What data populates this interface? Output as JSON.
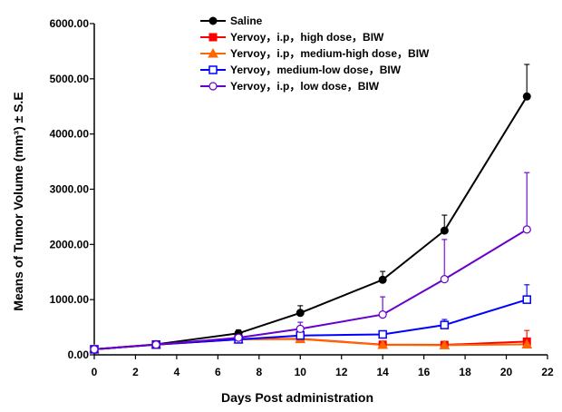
{
  "chart_data": {
    "type": "line",
    "title": "",
    "xlabel": "Days Post administration",
    "ylabel": "Means of Tumor Volume (mm³) ± S.E",
    "xlim": [
      0,
      22
    ],
    "ylim": [
      0,
      6000
    ],
    "xticks": [
      0,
      2,
      4,
      6,
      8,
      10,
      12,
      14,
      16,
      18,
      20,
      22
    ],
    "yticks": [
      0,
      1000,
      2000,
      3000,
      4000,
      5000,
      6000
    ],
    "ytick_labels": [
      "0.00",
      "1000.00",
      "2000.00",
      "3000.00",
      "4000.00",
      "5000.00",
      "6000.00"
    ],
    "grid": false,
    "legend_position": "top-left",
    "x": [
      0,
      3,
      7,
      10,
      14,
      17,
      21
    ],
    "series": [
      {
        "name": "Saline",
        "color": "#000000",
        "marker": "circle-filled",
        "values": [
          100,
          190,
          390,
          760,
          1360,
          2250,
          4680
        ],
        "errors": [
          15,
          30,
          60,
          130,
          150,
          280,
          580
        ]
      },
      {
        "name": "Yervoy，i.p，high dose，BIW",
        "color": "#ff0000",
        "marker": "square-filled",
        "values": [
          100,
          185,
          285,
          290,
          185,
          180,
          240
        ],
        "errors": [
          10,
          15,
          20,
          30,
          40,
          60,
          200
        ]
      },
      {
        "name": "Yervoy，i.p，medium-high dose，BIW",
        "color": "#ff6600",
        "marker": "triangle-filled",
        "values": [
          100,
          185,
          280,
          285,
          180,
          175,
          190
        ],
        "errors": [
          10,
          15,
          20,
          30,
          20,
          30,
          40
        ]
      },
      {
        "name": "Yervoy，medium-low dose，BIW",
        "color": "#0000ff",
        "marker": "square-open",
        "values": [
          100,
          185,
          280,
          350,
          370,
          540,
          1000
        ],
        "errors": [
          10,
          15,
          30,
          50,
          40,
          100,
          270
        ]
      },
      {
        "name": "Yervoy，i.p，low dose，BIW",
        "color": "#6600cc",
        "marker": "circle-open",
        "values": [
          100,
          185,
          310,
          470,
          730,
          1370,
          2270
        ],
        "errors": [
          10,
          15,
          40,
          120,
          320,
          720,
          1030
        ]
      }
    ]
  }
}
